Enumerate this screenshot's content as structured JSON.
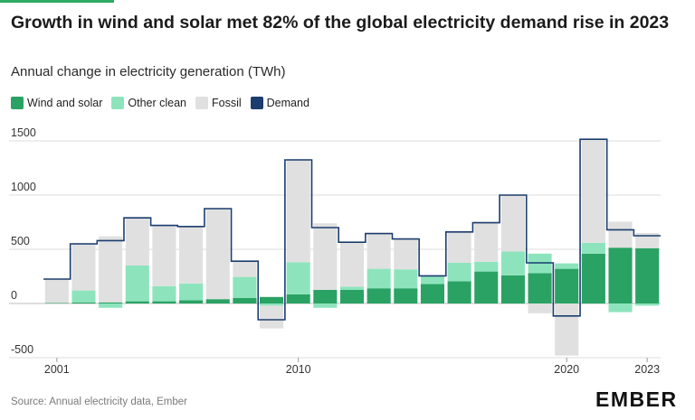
{
  "header": {
    "title": "Growth in wind and solar met 82% of the global electricity demand rise in 2023",
    "subtitle": "Annual change in electricity generation (TWh)"
  },
  "legend": [
    {
      "label": "Wind and solar",
      "color": "#2aa264"
    },
    {
      "label": "Other clean",
      "color": "#8de4bc"
    },
    {
      "label": "Fossil",
      "color": "#e0e0e0"
    },
    {
      "label": "Demand",
      "color": "#1c3d6e"
    }
  ],
  "footer": {
    "source": "Source: Annual electricity data, Ember",
    "logo": "EMBER"
  },
  "chart_data": {
    "type": "bar",
    "title": "Growth in wind and solar met 82% of the global electricity demand rise in 2023",
    "subtitle": "Annual change in electricity generation (TWh)",
    "xlabel": "",
    "ylabel": "",
    "ylim": [
      -500,
      1500
    ],
    "yticks": [
      -500,
      0,
      500,
      1000,
      1500
    ],
    "grid": true,
    "legend_position": "top-left",
    "categories": [
      "2001",
      "2002",
      "2003",
      "2004",
      "2005",
      "2006",
      "2007",
      "2008",
      "2009",
      "2010",
      "2011",
      "2012",
      "2013",
      "2014",
      "2015",
      "2016",
      "2017",
      "2018",
      "2019",
      "2020",
      "2021",
      "2022",
      "2023"
    ],
    "xtick_labels": [
      {
        "category": "2001",
        "label": "2001"
      },
      {
        "category": "2010",
        "label": "2010"
      },
      {
        "category": "2020",
        "label": "2020"
      },
      {
        "category": "2023",
        "label": "2023"
      }
    ],
    "series": [
      {
        "name": "Wind and solar",
        "values": [
          5,
          10,
          10,
          20,
          20,
          30,
          40,
          50,
          60,
          85,
          125,
          125,
          140,
          140,
          180,
          205,
          295,
          260,
          280,
          320,
          460,
          515,
          510
        ]
      },
      {
        "name": "Other clean",
        "values": [
          0,
          110,
          -40,
          330,
          140,
          155,
          0,
          195,
          -20,
          295,
          -40,
          30,
          180,
          175,
          70,
          170,
          90,
          220,
          180,
          50,
          100,
          -80,
          -20
        ]
      },
      {
        "name": "Fossil",
        "values": [
          220,
          440,
          610,
          440,
          565,
          525,
          840,
          140,
          -210,
          950,
          615,
          405,
          330,
          280,
          0,
          280,
          370,
          520,
          -90,
          -480,
          960,
          240,
          140
        ]
      },
      {
        "name": "Demand",
        "values": [
          225,
          550,
          580,
          790,
          720,
          710,
          875,
          390,
          -150,
          1325,
          700,
          565,
          645,
          595,
          255,
          660,
          745,
          1000,
          375,
          -115,
          1515,
          680,
          625
        ]
      }
    ]
  }
}
